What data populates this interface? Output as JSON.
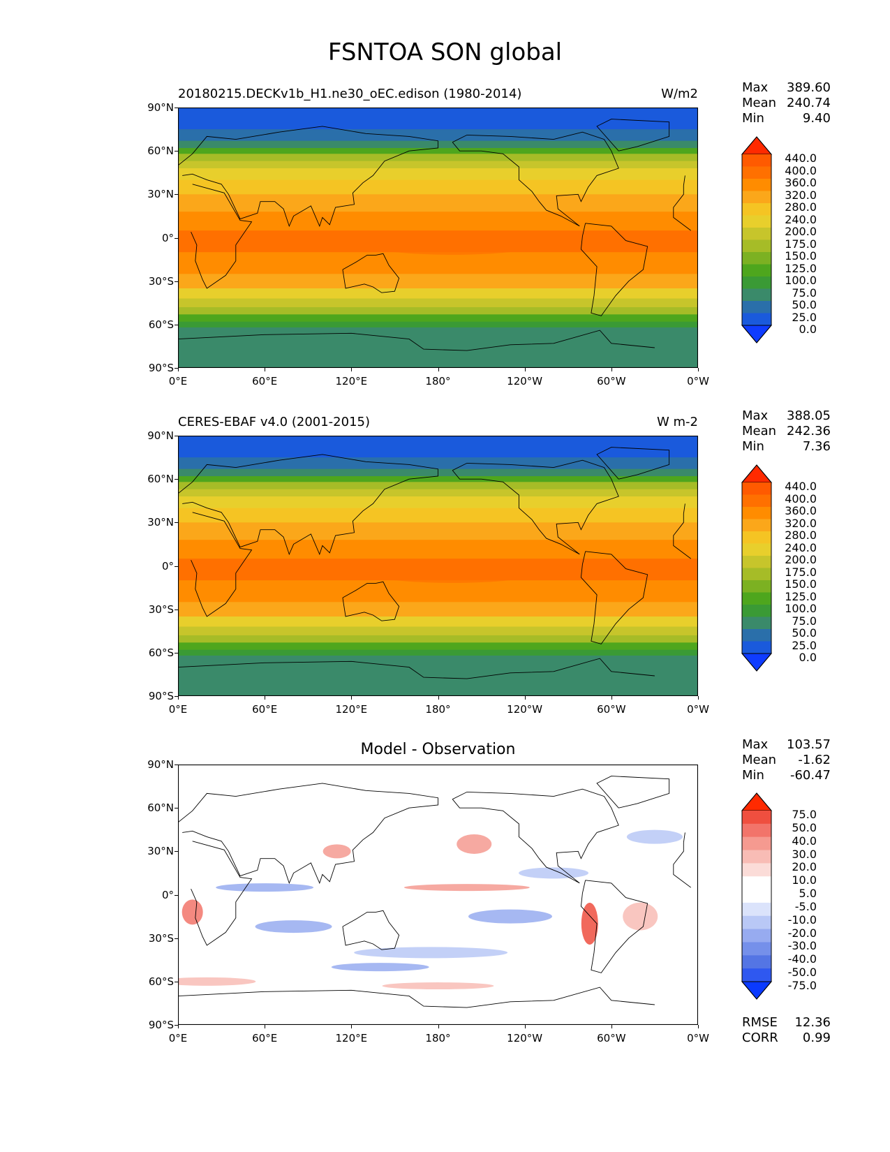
{
  "title": "FSNTOA SON global",
  "lat_ticks": [
    "90°N",
    "60°N",
    "30°N",
    "0°",
    "30°S",
    "60°S",
    "90°S"
  ],
  "lon_ticks": [
    "0°E",
    "60°E",
    "120°E",
    "180°",
    "120°W",
    "60°W",
    "0°W"
  ],
  "panels": [
    {
      "left_title": "20180215.DECKv1b_H1.ne30_oEC.edison (1980-2014)",
      "right_title": "W/m2",
      "center_title": "",
      "stats": [
        [
          "Max",
          "389.60"
        ],
        [
          "Mean",
          "240.74"
        ],
        [
          "Min",
          "9.40"
        ]
      ],
      "colorbar_levels": [
        "440.0",
        "400.0",
        "360.0",
        "320.0",
        "280.0",
        "240.0",
        "200.0",
        "175.0",
        "150.0",
        "125.0",
        "100.0",
        "75.0",
        "50.0",
        "25.0",
        "0.0"
      ],
      "colorbar_colors": [
        "#ff2a00",
        "#ff5a00",
        "#ff7000",
        "#ff8c00",
        "#fba71a",
        "#f5c423",
        "#e8cf2c",
        "#c7c52b",
        "#a6bc27",
        "#7cb122",
        "#4ea61d",
        "#3a9a35",
        "#3a8a6a",
        "#2a6faa",
        "#1a5adc",
        "#0f3cff"
      ],
      "extra": []
    },
    {
      "left_title": "CERES-EBAF v4.0 (2001-2015)",
      "right_title": "W m-2",
      "center_title": "",
      "stats": [
        [
          "Max",
          "388.05"
        ],
        [
          "Mean",
          "242.36"
        ],
        [
          "Min",
          "7.36"
        ]
      ],
      "colorbar_levels": [
        "440.0",
        "400.0",
        "360.0",
        "320.0",
        "280.0",
        "240.0",
        "200.0",
        "175.0",
        "150.0",
        "125.0",
        "100.0",
        "75.0",
        "50.0",
        "25.0",
        "0.0"
      ],
      "colorbar_colors": [
        "#ff2a00",
        "#ff5a00",
        "#ff7000",
        "#ff8c00",
        "#fba71a",
        "#f5c423",
        "#e8cf2c",
        "#c7c52b",
        "#a6bc27",
        "#7cb122",
        "#4ea61d",
        "#3a9a35",
        "#3a8a6a",
        "#2a6faa",
        "#1a5adc",
        "#0f3cff"
      ],
      "extra": []
    },
    {
      "left_title": "",
      "right_title": "",
      "center_title": "Model - Observation",
      "stats": [
        [
          "Max",
          "103.57"
        ],
        [
          "Mean",
          "-1.62"
        ],
        [
          "Min",
          "-60.47"
        ]
      ],
      "colorbar_levels": [
        "75.0",
        "50.0",
        "40.0",
        "30.0",
        "20.0",
        "10.0",
        "5.0",
        "-5.0",
        "-10.0",
        "-20.0",
        "-30.0",
        "-40.0",
        "-50.0",
        "-75.0"
      ],
      "colorbar_colors": [
        "#ff2a00",
        "#ef4f3f",
        "#f2746a",
        "#f59a90",
        "#f8bcb5",
        "#fbdcd8",
        "#ffffff",
        "#ffffff",
        "#dbe3fb",
        "#b9c8f6",
        "#97abf0",
        "#7590ea",
        "#5475e4",
        "#2f58f0",
        "#0a3aff"
      ],
      "extra": [
        [
          "RMSE",
          "12.36"
        ],
        [
          "CORR",
          "0.99"
        ]
      ]
    }
  ]
}
